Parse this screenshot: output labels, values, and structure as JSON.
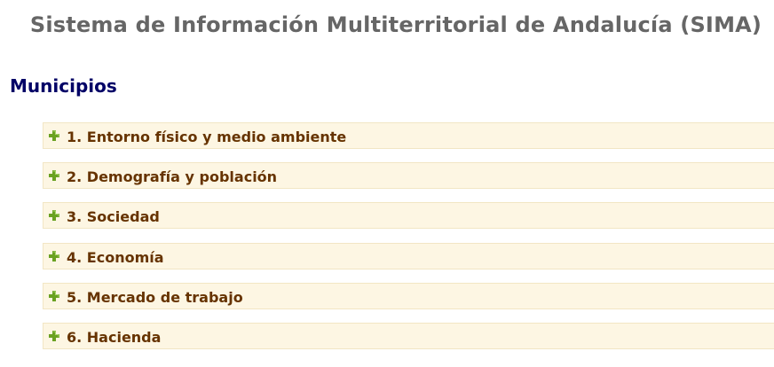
{
  "header": {
    "title": "Sistema de Información Multiterritorial de Andalucía (SIMA)"
  },
  "section": {
    "heading": "Municipios"
  },
  "categories": [
    {
      "label": "1. Entorno físico y medio ambiente",
      "icon": "plus-icon"
    },
    {
      "label": "2. Demografía y población",
      "icon": "plus-icon"
    },
    {
      "label": "3. Sociedad",
      "icon": "plus-icon"
    },
    {
      "label": "4. Economía",
      "icon": "plus-icon"
    },
    {
      "label": "5. Mercado de trabajo",
      "icon": "plus-icon"
    },
    {
      "label": "6. Hacienda",
      "icon": "plus-icon"
    }
  ],
  "colors": {
    "title": "#666666",
    "heading": "#000066",
    "item_background": "#fdf6e3",
    "item_text": "#663300",
    "icon_green": "#6aa121"
  }
}
